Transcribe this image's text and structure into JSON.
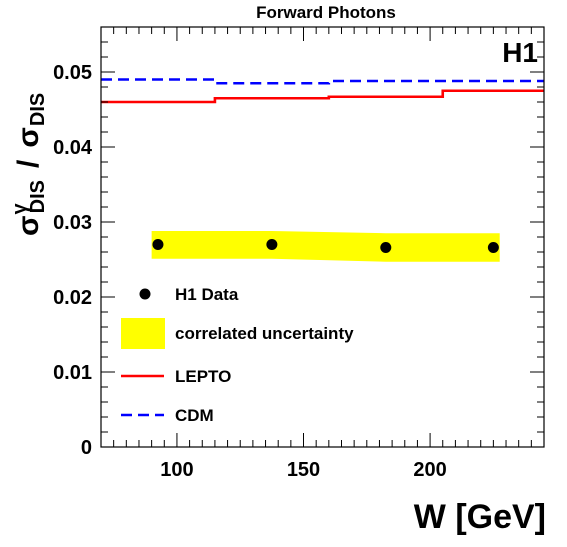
{
  "chart_data": {
    "type": "line",
    "title": "Forward Photons",
    "experiment_label": "H1",
    "xlabel": "W [GeV]",
    "ylabel": {
      "numerator_symbol": "σ",
      "numerator_superscript": "γ",
      "numerator_subscript": "DIS",
      "separator": "/",
      "denominator_symbol": "σ",
      "denominator_subscript": "DIS"
    },
    "xlim": [
      70,
      245
    ],
    "ylim": [
      0,
      0.056
    ],
    "x_ticks": [
      100,
      150,
      200
    ],
    "x_tick_labels": [
      "100",
      "150",
      "200"
    ],
    "y_ticks": [
      0,
      0.01,
      0.02,
      0.03,
      0.04,
      0.05
    ],
    "y_tick_labels": [
      "0",
      "0.01",
      "0.02",
      "0.03",
      "0.04",
      "0.05"
    ],
    "grid": false,
    "legend_position": "bottom-left",
    "series": [
      {
        "name": "H1 Data",
        "kind": "points",
        "color": "#000000",
        "x": [
          92.5,
          137.5,
          182.5,
          225
        ],
        "y": [
          0.027,
          0.027,
          0.0266,
          0.0266
        ]
      },
      {
        "name": "correlated uncertainty",
        "kind": "band",
        "color": "#ffff00",
        "x": [
          92.5,
          137.5,
          182.5,
          225
        ],
        "y_low": [
          0.0251,
          0.0251,
          0.0247,
          0.0247
        ],
        "y_high": [
          0.0288,
          0.0288,
          0.0285,
          0.0285
        ]
      },
      {
        "name": "LEPTO",
        "kind": "step",
        "color": "#ff0000",
        "bin_edges": [
          70,
          115,
          160,
          205,
          245
        ],
        "values": [
          0.046,
          0.0465,
          0.0467,
          0.0475
        ]
      },
      {
        "name": "CDM",
        "kind": "step-dashed",
        "color": "#0000ff",
        "bin_edges": [
          70,
          115,
          160,
          205,
          245
        ],
        "values": [
          0.049,
          0.0485,
          0.0488,
          0.0488
        ]
      }
    ]
  }
}
